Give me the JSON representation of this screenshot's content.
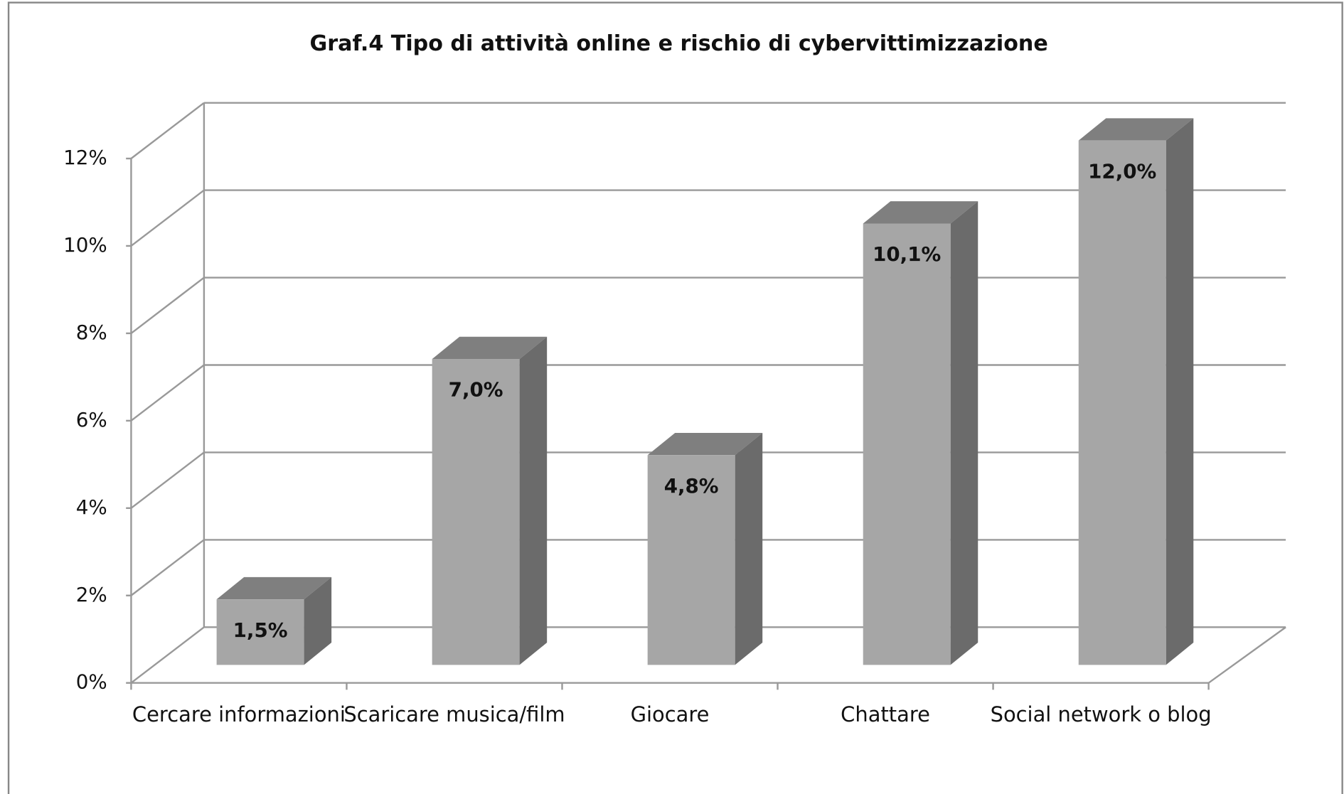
{
  "chart_data": {
    "type": "bar3d",
    "title": "Graf.4 Tipo di attività online e rischio di cybervittimizzazione",
    "categories": [
      "Cercare informazioni",
      "Scaricare musica/film",
      "Giocare",
      "Chattare",
      "Social network o blog"
    ],
    "values": [
      1.5,
      7.0,
      4.8,
      10.1,
      12.0
    ],
    "value_labels": [
      "1,5%",
      "7,0%",
      "4,8%",
      "10,1%",
      "12,0%"
    ],
    "color": "#a6a6a6",
    "ylim": [
      0,
      12
    ],
    "yticks": [
      {
        "value": 0,
        "label": "0%"
      },
      {
        "value": 2,
        "label": "2%"
      },
      {
        "value": 4,
        "label": "4%"
      },
      {
        "value": 6,
        "label": "6%"
      },
      {
        "value": 8,
        "label": "8%"
      },
      {
        "value": 10,
        "label": "10%"
      },
      {
        "value": 12,
        "label": "12%"
      }
    ],
    "grid": true
  }
}
